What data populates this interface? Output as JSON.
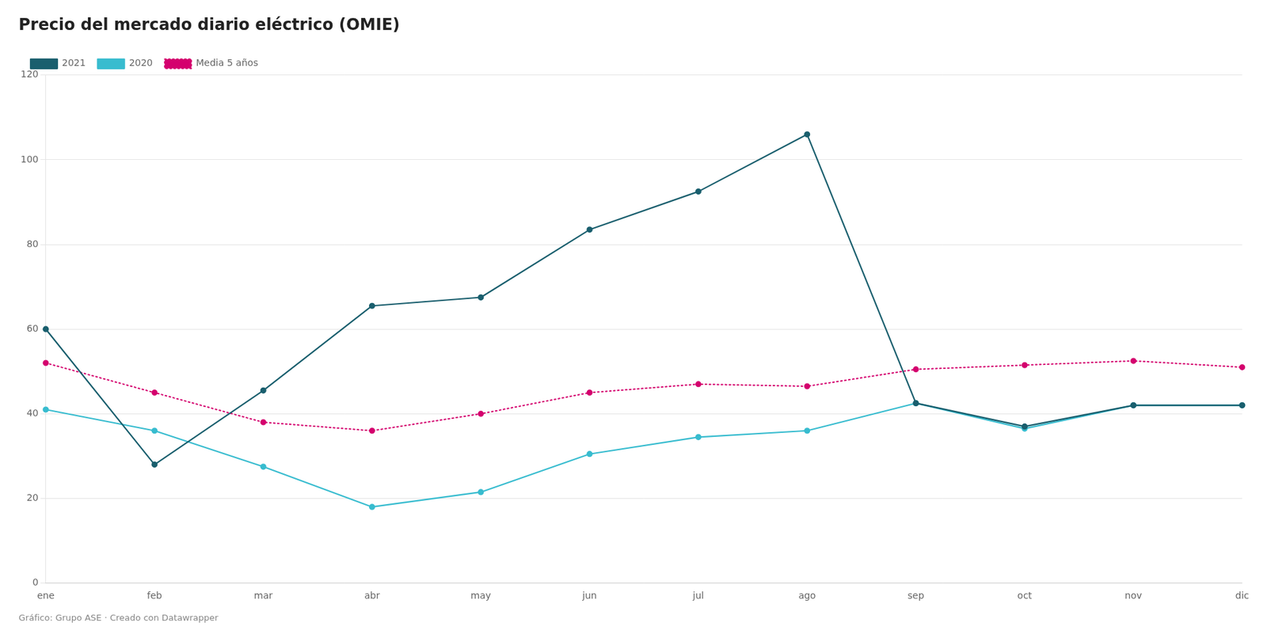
{
  "chart_data": {
    "type": "line",
    "title": "Precio del mercado diario eléctrico (OMIE)",
    "subtitle": "Gráfico: Grupo ASE · Creado con Datawrapper",
    "categories": [
      "ene",
      "feb",
      "mar",
      "abr",
      "may",
      "jun",
      "jul",
      "ago",
      "sep",
      "oct",
      "nov",
      "dic"
    ],
    "series": [
      {
        "name": "2021",
        "color": "#1a5f6e",
        "marker": "circle",
        "line_style": "solid",
        "values": [
          60.0,
          28.0,
          45.5,
          65.5,
          67.5,
          83.5,
          92.5,
          106.0,
          42.5,
          37.0,
          42.0,
          42.0
        ]
      },
      {
        "name": "2020",
        "color": "#38bccf",
        "marker": "circle",
        "line_style": "solid",
        "values": [
          41.0,
          36.0,
          27.5,
          18.0,
          21.5,
          30.5,
          34.5,
          36.0,
          42.5,
          36.5,
          42.0,
          42.0
        ]
      },
      {
        "name": "Media 5 años",
        "color": "#d4006e",
        "marker": "circle",
        "line_style": "dotted",
        "values": [
          52.0,
          45.0,
          38.0,
          36.0,
          40.0,
          45.0,
          47.0,
          46.5,
          50.5,
          51.5,
          52.5,
          51.0
        ]
      }
    ],
    "ylim": [
      0,
      120
    ],
    "yticks": [
      0,
      20,
      40,
      60,
      80,
      100,
      120
    ],
    "grid": true,
    "legend": "upper left"
  }
}
